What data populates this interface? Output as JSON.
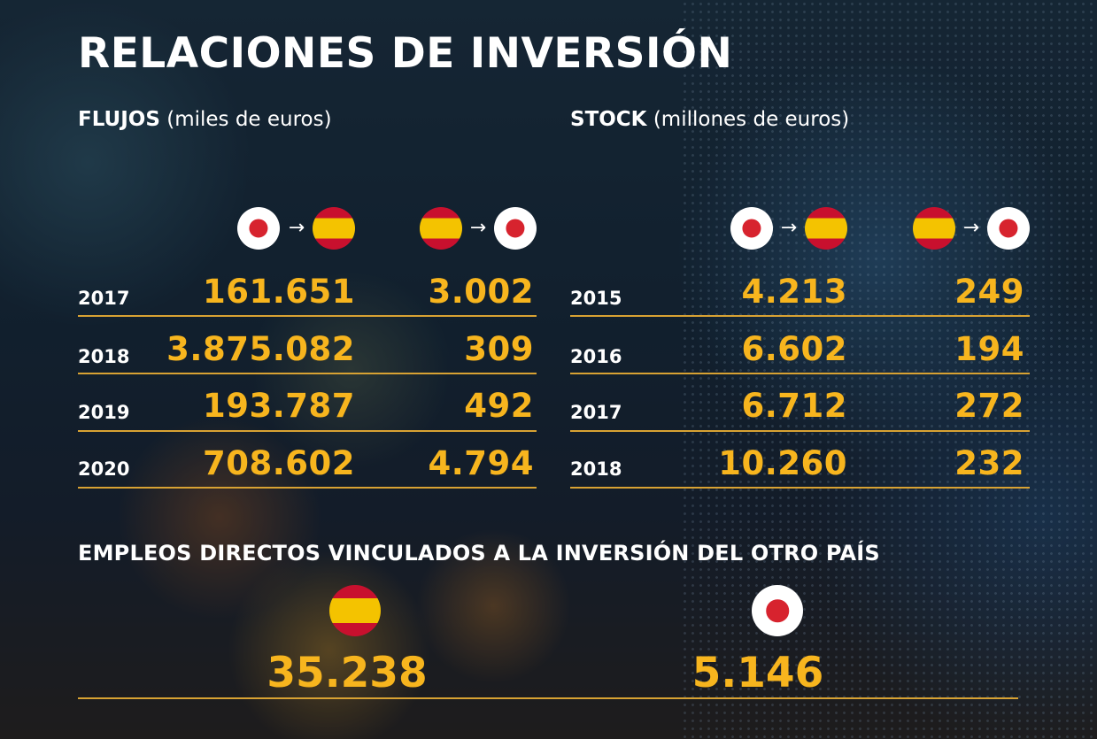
{
  "title": "RELACIONES DE INVERSIÓN",
  "colors": {
    "accent": "#f7b51e",
    "rule": "#d8a233",
    "japan_red": "#d7232e",
    "spain_red": "#c8102e",
    "spain_yellow": "#f4c300"
  },
  "flujos": {
    "heading": "FLUJOS",
    "unit": "(miles de euros)",
    "col1_icons": [
      "japan-flag-icon",
      "arrow-right-icon",
      "spain-flag-icon"
    ],
    "col2_icons": [
      "spain-flag-icon",
      "arrow-right-icon",
      "japan-flag-icon"
    ],
    "rows": [
      {
        "year": "2017",
        "col1": "161.651",
        "col2": "3.002"
      },
      {
        "year": "2018",
        "col1": "3.875.082",
        "col2": "309"
      },
      {
        "year": "2019",
        "col1": "193.787",
        "col2": "492"
      },
      {
        "year": "2020",
        "col1": "708.602",
        "col2": "4.794"
      }
    ]
  },
  "stock": {
    "heading": "STOCK",
    "unit": "(millones de euros)",
    "col1_icons": [
      "japan-flag-icon",
      "arrow-right-icon",
      "spain-flag-icon"
    ],
    "col2_icons": [
      "spain-flag-icon",
      "arrow-right-icon",
      "japan-flag-icon"
    ],
    "rows": [
      {
        "year": "2015",
        "col1": "4.213",
        "col2": "249"
      },
      {
        "year": "2016",
        "col1": "6.602",
        "col2": "194"
      },
      {
        "year": "2017",
        "col1": "6.712",
        "col2": "272"
      },
      {
        "year": "2018",
        "col1": "10.260",
        "col2": "232"
      }
    ]
  },
  "empleos": {
    "heading": "EMPLEOS DIRECTOS VINCULADOS A LA INVERSIÓN DEL OTRO PAÍS",
    "spain": {
      "icon": "spain-flag-icon",
      "value": "35.238"
    },
    "japan": {
      "icon": "japan-flag-icon",
      "value": "5.146"
    }
  }
}
